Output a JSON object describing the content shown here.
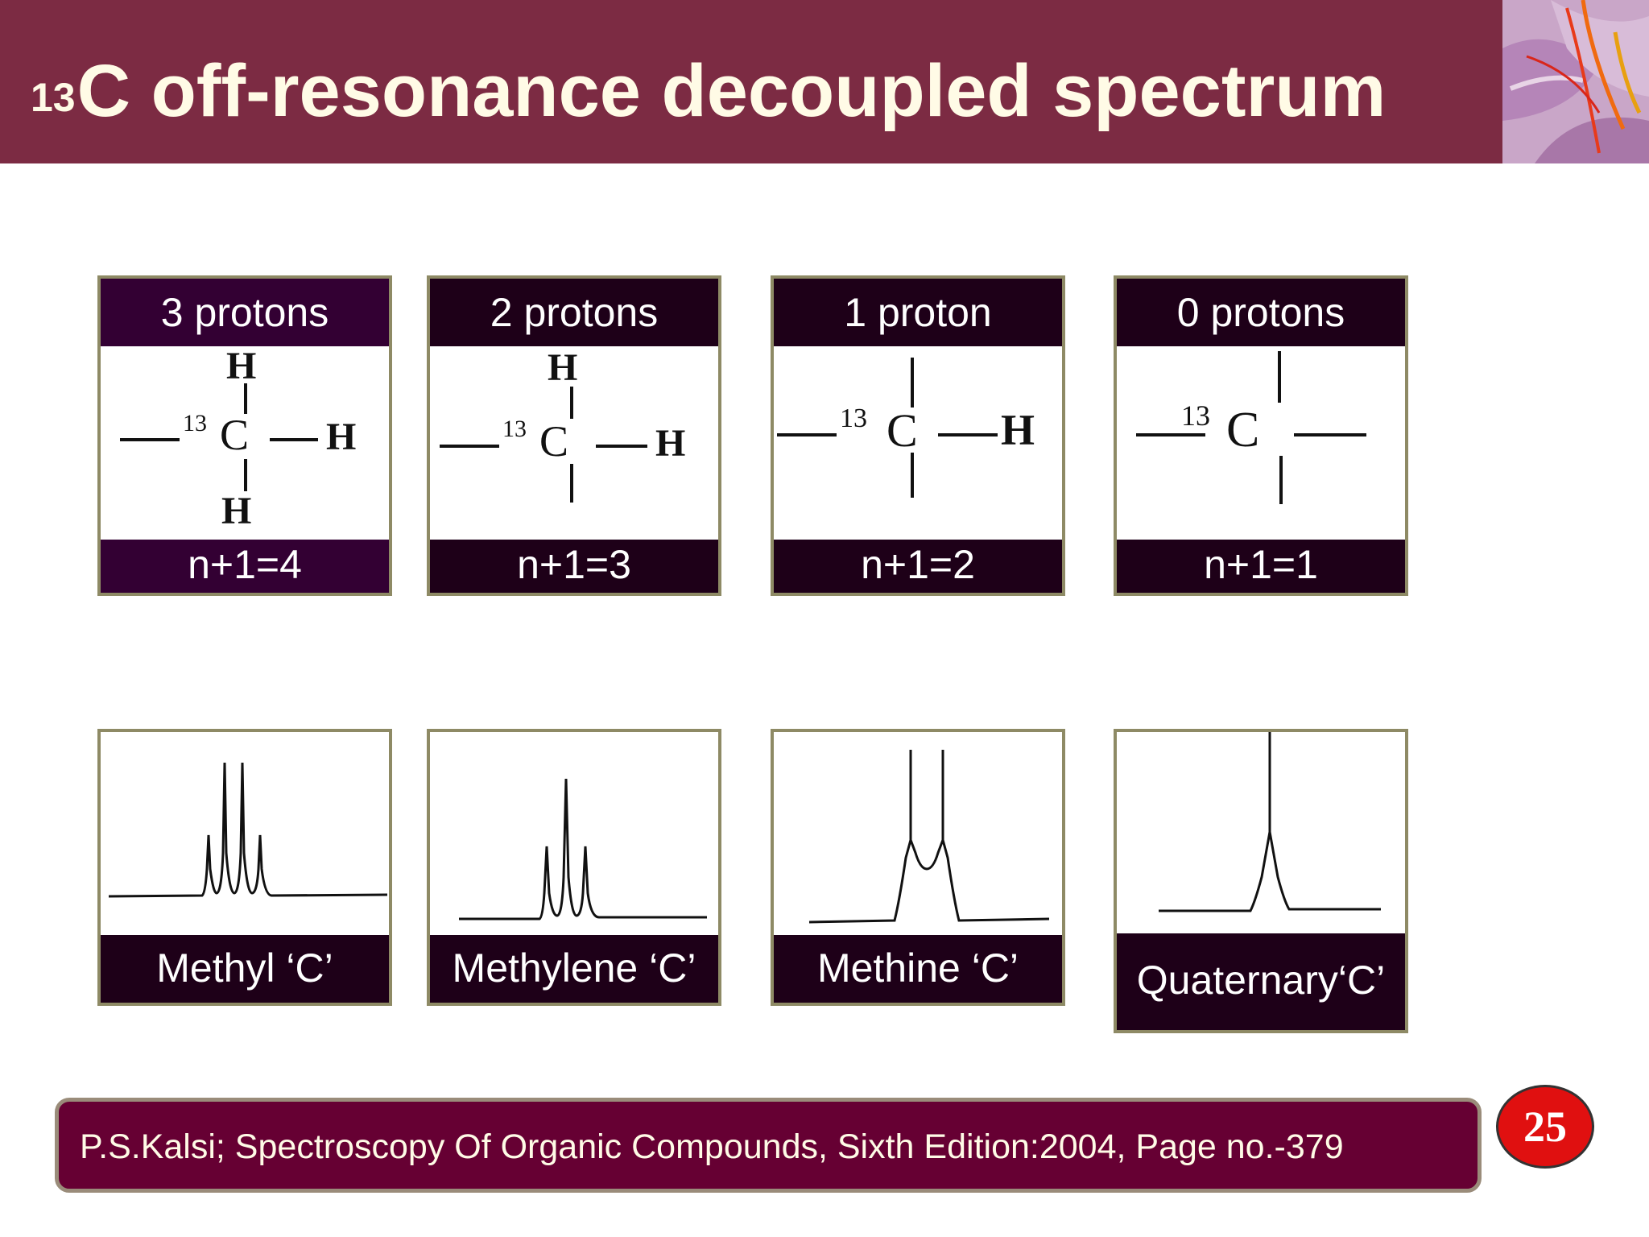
{
  "slide": {
    "title_sup": "13",
    "title_text": "C off-resonance decoupled spectrum",
    "page_number": "25",
    "footer": "P.S.Kalsi; Spectroscopy Of Organic Compounds, Sixth Edition:2004, Page no.-379"
  },
  "colors": {
    "header": "#7c2b43",
    "caption": "#1e0018",
    "footer": "#660033",
    "badge": "#e01010"
  },
  "structures": [
    {
      "protons": "3 protons",
      "rule": "n+1=4",
      "isotope": "13",
      "atoms": {
        "carbon": "C",
        "hydrogen": "H"
      }
    },
    {
      "protons": "2 protons",
      "rule": "n+1=3",
      "isotope": "13",
      "atoms": {
        "carbon": "C",
        "hydrogen": "H"
      }
    },
    {
      "protons": "1 proton",
      "rule": "n+1=2",
      "isotope": "13",
      "atoms": {
        "carbon": "C",
        "hydrogen": "H"
      }
    },
    {
      "protons": "0 protons",
      "rule": "n+1=1",
      "isotope": "13",
      "atoms": {
        "carbon": "C"
      }
    }
  ],
  "spectra": [
    {
      "label": "Methyl ‘C’",
      "multiplicity": "quartet"
    },
    {
      "label": "Methylene ‘C’",
      "multiplicity": "triplet"
    },
    {
      "label": "Methine ‘C’",
      "multiplicity": "doublet"
    },
    {
      "label": "Quaternary‘C’",
      "multiplicity": "singlet"
    }
  ]
}
